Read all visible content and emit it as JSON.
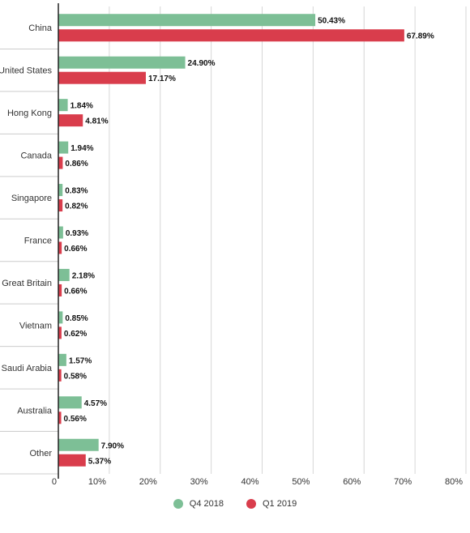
{
  "chart_data": {
    "type": "bar",
    "orientation": "horizontal",
    "categories": [
      "China",
      "United States",
      "Hong Kong",
      "Canada",
      "Singapore",
      "France",
      "Great Britain",
      "Vietnam",
      "Saudi Arabia",
      "Australia",
      "Other"
    ],
    "series": [
      {
        "name": "Q4 2018",
        "color": "#7dbf96",
        "values": [
          50.43,
          24.9,
          1.84,
          1.94,
          0.83,
          0.93,
          2.18,
          0.85,
          1.57,
          4.57,
          7.9
        ],
        "labels": [
          "50.43%",
          "24.90%",
          "1.84%",
          "1.94%",
          "0.83%",
          "0.93%",
          "2.18%",
          "0.85%",
          "1.57%",
          "4.57%",
          "7.90%"
        ]
      },
      {
        "name": "Q1 2019",
        "color": "#d93d4c",
        "values": [
          67.89,
          17.17,
          4.81,
          0.86,
          0.82,
          0.66,
          0.66,
          0.62,
          0.58,
          0.56,
          5.37
        ],
        "labels": [
          "67.89%",
          "17.17%",
          "4.81%",
          "0.86%",
          "0.82%",
          "0.66%",
          "0.66%",
          "0.62%",
          "0.58%",
          "0.56%",
          "5.37%"
        ]
      }
    ],
    "xlim": [
      0,
      80
    ],
    "xticks": [
      0,
      10,
      20,
      30,
      40,
      50,
      60,
      70,
      80
    ],
    "xtick_labels": [
      "0",
      "10%",
      "20%",
      "30%",
      "40%",
      "50%",
      "60%",
      "70%",
      "80%"
    ],
    "grid": true,
    "legend_position": "bottom-center"
  }
}
